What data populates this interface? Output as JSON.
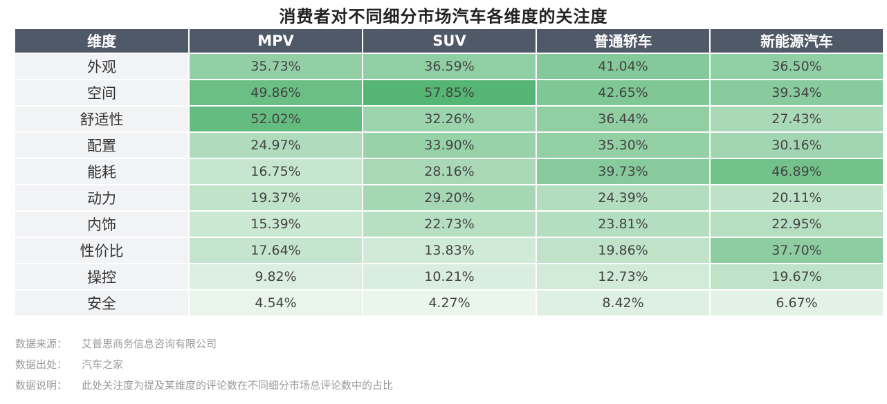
{
  "chart_data": {
    "type": "heatmap",
    "title": "消费者对不同细分市场汽车各维度的关注度",
    "corner_label": "维度",
    "columns": [
      "MPV",
      "SUV",
      "普通轿车",
      "新能源汽车"
    ],
    "rows": [
      "外观",
      "空间",
      "舒适性",
      "配置",
      "能耗",
      "动力",
      "内饰",
      "性价比",
      "操控",
      "安全"
    ],
    "values": [
      [
        35.73,
        36.59,
        41.04,
        36.5
      ],
      [
        49.86,
        57.85,
        42.65,
        39.34
      ],
      [
        52.02,
        32.26,
        36.44,
        27.43
      ],
      [
        24.97,
        33.9,
        35.3,
        30.16
      ],
      [
        16.75,
        28.16,
        39.73,
        46.89
      ],
      [
        19.37,
        29.2,
        24.39,
        20.11
      ],
      [
        15.39,
        22.73,
        23.81,
        22.95
      ],
      [
        17.64,
        13.83,
        19.86,
        37.7
      ],
      [
        9.82,
        10.21,
        12.73,
        19.67
      ],
      [
        4.54,
        4.27,
        8.42,
        6.67
      ]
    ],
    "value_labels": [
      [
        "35.73%",
        "36.59%",
        "41.04%",
        "36.50%"
      ],
      [
        "49.86%",
        "57.85%",
        "42.65%",
        "39.34%"
      ],
      [
        "52.02%",
        "32.26%",
        "36.44%",
        "27.43%"
      ],
      [
        "24.97%",
        "33.90%",
        "35.30%",
        "30.16%"
      ],
      [
        "16.75%",
        "28.16%",
        "39.73%",
        "46.89%"
      ],
      [
        "19.37%",
        "29.20%",
        "24.39%",
        "20.11%"
      ],
      [
        "15.39%",
        "22.73%",
        "23.81%",
        "22.95%"
      ],
      [
        "17.64%",
        "13.83%",
        "19.86%",
        "37.70%"
      ],
      [
        "9.82%",
        "10.21%",
        "12.73%",
        "19.67%"
      ],
      [
        "4.54%",
        "4.27%",
        "8.42%",
        "6.67%"
      ]
    ],
    "value_range": [
      4.27,
      57.85
    ],
    "color_low": "#eaf5ec",
    "color_high": "#55b573",
    "header_color": "#4f5968"
  },
  "notes": [
    {
      "label": "数据来源：",
      "text": "艾普思商务信息咨询有限公司"
    },
    {
      "label": "数据出处：",
      "text": "汽车之家"
    },
    {
      "label": "数据说明：",
      "text": "此处关注度为提及某维度的评论数在不同细分市场总评论数中的占比"
    }
  ]
}
